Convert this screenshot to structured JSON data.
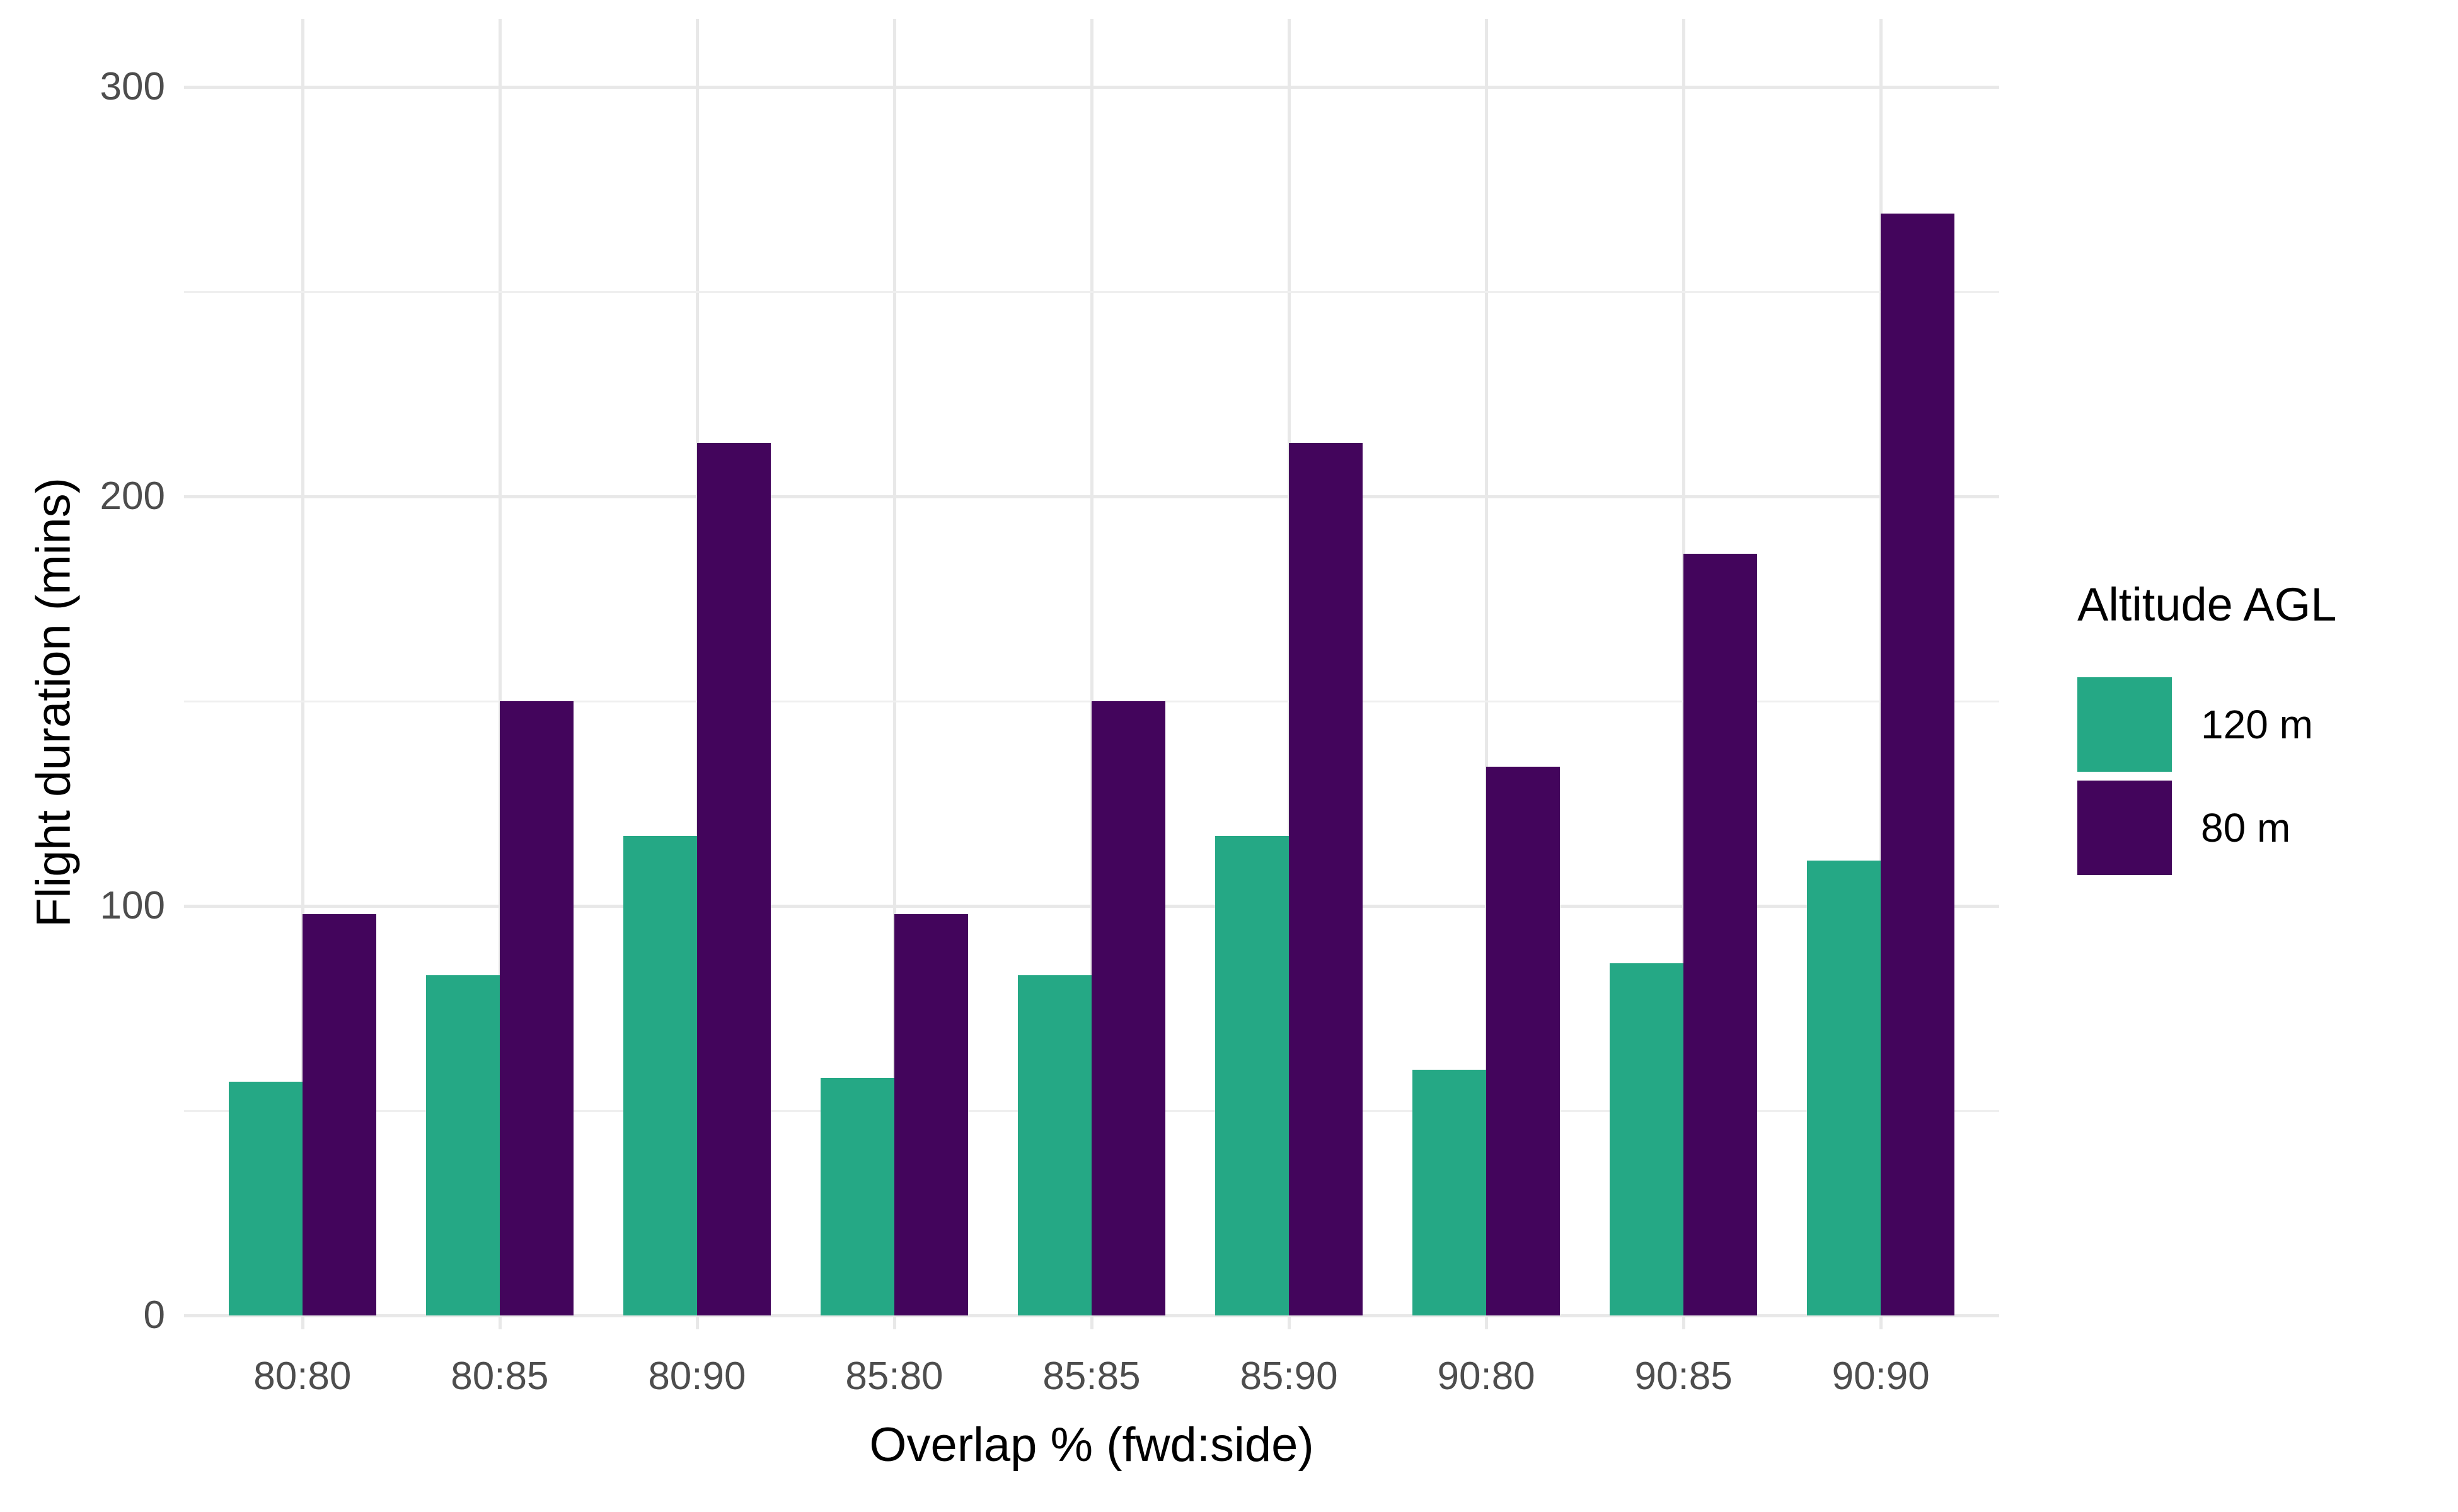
{
  "figure": {
    "background": "#ffffff"
  },
  "y_axis": {
    "title": "Flight duration (mins)",
    "tick_labels": [
      "0",
      "100",
      "200",
      "300"
    ],
    "tick_values": [
      0,
      100,
      200,
      300
    ],
    "minor_values": [
      50,
      150,
      250
    ],
    "tick_color": "#4d4d4d"
  },
  "x_axis": {
    "title": "Overlap % (fwd:side)",
    "tick_color": "#4d4d4d"
  },
  "legend": {
    "title": "Altitude AGL",
    "items": [
      {
        "label": "120 m",
        "color": "#25a885"
      },
      {
        "label": "80 m",
        "color": "#43055c"
      }
    ]
  },
  "grid": {
    "major_color": "#e8e8e8",
    "minor_color": "#efefef"
  },
  "chart_data": {
    "type": "bar",
    "title": "",
    "xlabel": "Overlap % (fwd:side)",
    "ylabel": "Flight duration (mins)",
    "categories": [
      "80:80",
      "80:85",
      "80:90",
      "85:80",
      "85:85",
      "85:90",
      "90:80",
      "90:85",
      "90:90"
    ],
    "series": [
      {
        "name": "120 m",
        "color": "#25a885",
        "values": [
          57,
          83,
          117,
          58,
          83,
          117,
          60,
          86,
          111
        ]
      },
      {
        "name": "80 m",
        "color": "#43055c",
        "values": [
          98,
          150,
          213,
          98,
          150,
          213,
          134,
          186,
          269
        ]
      }
    ],
    "ylim": [
      0,
      300
    ],
    "yticks": [
      0,
      100,
      200,
      300
    ],
    "grid": "on",
    "legend_position": "right",
    "legend_title": "Altitude AGL",
    "bar_grouping": "dodged"
  }
}
